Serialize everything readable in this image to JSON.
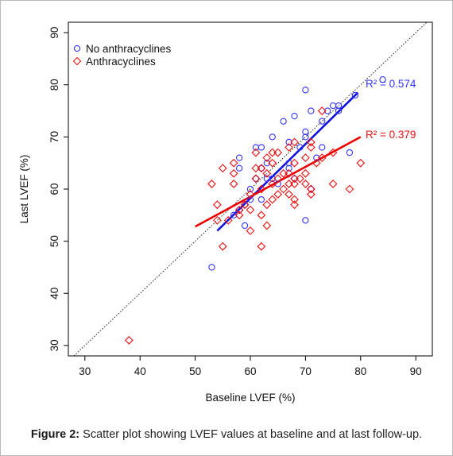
{
  "caption": {
    "prefix": "Figure 2:",
    "text": " Scatter plot showing LVEF values at baseline and at last follow-up."
  },
  "chart_data": {
    "type": "scatter",
    "xlabel": "Baseline LVEF (%)",
    "ylabel": "Last LVEF (%)",
    "xlim": [
      27,
      93
    ],
    "ylim": [
      28,
      92
    ],
    "xticks": [
      30,
      40,
      50,
      60,
      70,
      80,
      90
    ],
    "yticks": [
      30,
      40,
      50,
      60,
      70,
      80,
      90
    ],
    "grid": false,
    "legend": "top-left",
    "identity_line": true,
    "series": [
      {
        "name": "No anthracyclines",
        "color": "#3333ff",
        "marker": "circle",
        "points": [
          [
            53,
            45
          ],
          [
            59,
            53
          ],
          [
            57,
            55
          ],
          [
            58,
            56
          ],
          [
            58,
            64
          ],
          [
            58,
            66
          ],
          [
            59,
            57
          ],
          [
            60,
            58
          ],
          [
            60,
            60
          ],
          [
            61,
            68
          ],
          [
            61,
            62
          ],
          [
            62,
            58
          ],
          [
            62,
            64
          ],
          [
            62,
            68
          ],
          [
            63,
            62
          ],
          [
            63,
            65
          ],
          [
            64,
            70
          ],
          [
            64,
            62
          ],
          [
            65,
            61
          ],
          [
            66,
            73
          ],
          [
            67,
            64
          ],
          [
            67,
            69
          ],
          [
            67,
            65
          ],
          [
            68,
            74
          ],
          [
            68,
            62
          ],
          [
            69,
            68
          ],
          [
            70,
            79
          ],
          [
            70,
            71
          ],
          [
            70,
            70
          ],
          [
            70,
            54
          ],
          [
            71,
            75
          ],
          [
            71,
            60
          ],
          [
            72,
            66
          ],
          [
            73,
            68
          ],
          [
            73,
            73
          ],
          [
            74,
            75
          ],
          [
            75,
            76
          ],
          [
            76,
            75
          ],
          [
            76,
            76
          ],
          [
            78,
            67
          ],
          [
            79,
            78
          ],
          [
            84,
            81
          ]
        ],
        "fit": {
          "x": [
            54,
            79.5
          ],
          "y": [
            52,
            78.5
          ]
        },
        "r2_label": "R² = 0.574"
      },
      {
        "name": "Anthracyclines",
        "color": "#ee1111",
        "marker": "diamond",
        "points": [
          [
            38,
            31
          ],
          [
            53,
            61
          ],
          [
            54,
            54
          ],
          [
            54,
            57
          ],
          [
            55,
            49
          ],
          [
            55,
            64
          ],
          [
            56,
            54
          ],
          [
            57,
            61
          ],
          [
            57,
            63
          ],
          [
            57,
            65
          ],
          [
            58,
            55
          ],
          [
            58,
            56
          ],
          [
            59,
            57
          ],
          [
            60,
            52
          ],
          [
            60,
            56
          ],
          [
            60,
            59
          ],
          [
            61,
            62
          ],
          [
            61,
            64
          ],
          [
            61,
            67
          ],
          [
            62,
            49
          ],
          [
            62,
            55
          ],
          [
            62,
            60
          ],
          [
            62,
            64
          ],
          [
            63,
            53
          ],
          [
            63,
            57
          ],
          [
            63,
            63
          ],
          [
            63,
            66
          ],
          [
            64,
            58
          ],
          [
            64,
            61
          ],
          [
            64,
            65
          ],
          [
            64,
            67
          ],
          [
            65,
            59
          ],
          [
            65,
            62
          ],
          [
            65,
            67
          ],
          [
            66,
            60
          ],
          [
            66,
            63
          ],
          [
            67,
            59
          ],
          [
            67,
            61
          ],
          [
            67,
            63
          ],
          [
            67,
            68
          ],
          [
            68,
            57
          ],
          [
            68,
            58
          ],
          [
            68,
            61
          ],
          [
            68,
            62
          ],
          [
            68,
            65
          ],
          [
            68,
            69
          ],
          [
            69,
            62
          ],
          [
            70,
            61
          ],
          [
            70,
            63
          ],
          [
            70,
            66
          ],
          [
            71,
            59
          ],
          [
            71,
            60
          ],
          [
            71,
            68
          ],
          [
            71,
            69
          ],
          [
            72,
            65
          ],
          [
            73,
            66
          ],
          [
            73,
            75
          ],
          [
            75,
            61
          ],
          [
            75,
            67
          ],
          [
            78,
            60
          ],
          [
            80,
            65
          ]
        ],
        "fit": {
          "x": [
            50,
            80
          ],
          "y": [
            52.8,
            70
          ]
        },
        "r2_label": "R² = 0.379"
      }
    ]
  }
}
